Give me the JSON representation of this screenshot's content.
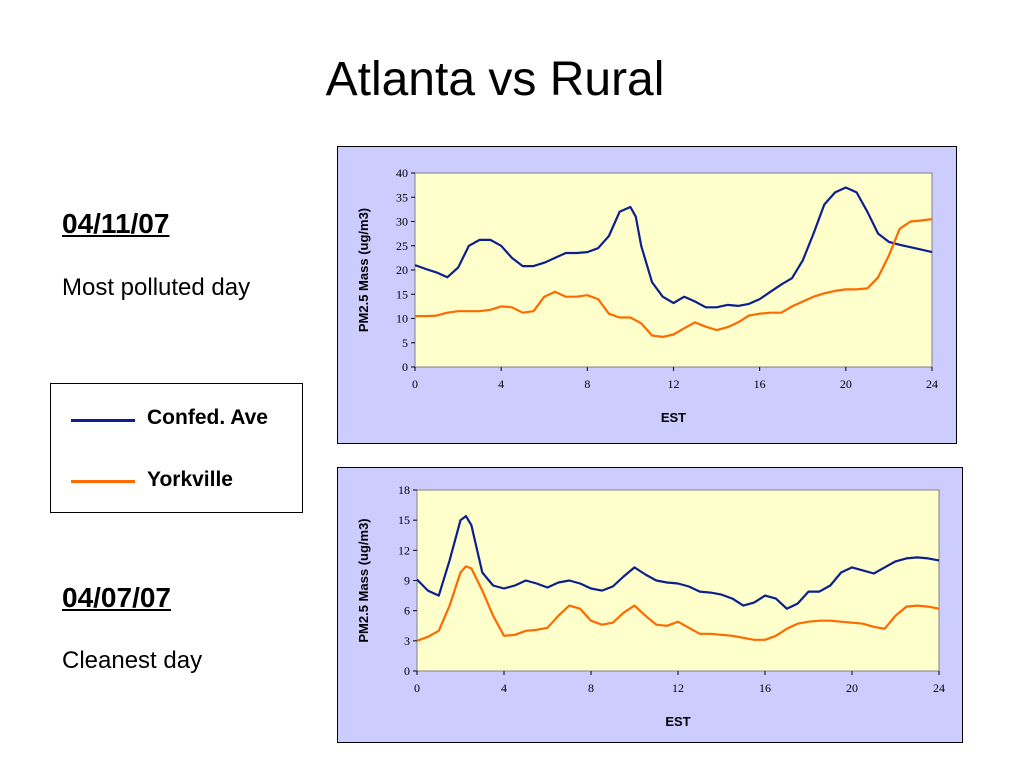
{
  "title": "Atlanta vs Rural",
  "days": [
    {
      "date": "04/11/07",
      "description": "Most polluted day"
    },
    {
      "date": "04/07/07",
      "description": "Cleanest day"
    }
  ],
  "legend": {
    "items": [
      {
        "label": "Confed. Ave",
        "color": "#0b1f8f"
      },
      {
        "label": "Yorkville",
        "color": "#ff6a00"
      }
    ]
  },
  "chart_data": [
    {
      "type": "line",
      "title": "",
      "xlabel": "EST",
      "ylabel": "PM2.5 Mass (ug/m3)",
      "xlim": [
        0,
        24
      ],
      "ylim": [
        0,
        40
      ],
      "xticks": [
        0,
        4,
        8,
        12,
        16,
        20,
        24
      ],
      "yticks": [
        0,
        5,
        10,
        15,
        20,
        25,
        30,
        35,
        40
      ],
      "plot_background": "#ffffcc",
      "series": [
        {
          "name": "Confed. Ave",
          "color": "#0b1f8f",
          "x": [
            0,
            0.5,
            1,
            1.5,
            2,
            2.5,
            3,
            3.5,
            4,
            4.5,
            5,
            5.5,
            6,
            6.5,
            7,
            7.5,
            8,
            8.5,
            9,
            9.5,
            10,
            10.25,
            10.5,
            11,
            11.5,
            12,
            12.5,
            13,
            13.5,
            14,
            14.5,
            15,
            15.5,
            16,
            16.5,
            17,
            17.5,
            18,
            18.5,
            19,
            19.5,
            20,
            20.5,
            21,
            21.5,
            22,
            22.5,
            23,
            23.5,
            24
          ],
          "y": [
            21,
            20.2,
            19.5,
            18.5,
            20.5,
            25,
            26.2,
            26.2,
            25,
            22.5,
            20.8,
            20.8,
            21.5,
            22.5,
            23.5,
            23.5,
            23.7,
            24.5,
            27,
            32,
            33,
            31,
            25,
            17.5,
            14.5,
            13.2,
            14.5,
            13.5,
            12.3,
            12.3,
            12.8,
            12.6,
            13,
            14,
            15.5,
            17,
            18.3,
            22,
            27.5,
            33.5,
            36,
            37,
            36,
            32,
            27.5,
            25.8,
            25.2,
            24.7,
            24.2,
            23.7
          ]
        },
        {
          "name": "Yorkville",
          "color": "#ff6a00",
          "x": [
            0,
            0.5,
            1,
            1.5,
            2,
            2.5,
            3,
            3.5,
            4,
            4.5,
            5,
            5.5,
            6,
            6.5,
            7,
            7.5,
            8,
            8.5,
            9,
            9.5,
            10,
            10.5,
            11,
            11.5,
            12,
            12.5,
            13,
            13.5,
            14,
            14.5,
            15,
            15.5,
            16,
            16.5,
            17,
            17.5,
            18,
            18.5,
            19,
            19.5,
            20,
            20.5,
            21,
            21.5,
            22,
            22.5,
            23,
            23.5,
            24
          ],
          "y": [
            10.5,
            10.5,
            10.6,
            11.2,
            11.5,
            11.5,
            11.5,
            11.8,
            12.5,
            12.3,
            11.2,
            11.5,
            14.5,
            15.5,
            14.5,
            14.5,
            14.8,
            14,
            11,
            10.2,
            10.2,
            9,
            6.5,
            6.2,
            6.7,
            8,
            9.2,
            8.3,
            7.6,
            8.2,
            9.2,
            10.6,
            11,
            11.2,
            11.2,
            12.5,
            13.5,
            14.5,
            15.2,
            15.7,
            16,
            16,
            16.2,
            18.5,
            23,
            28.5,
            30,
            30.2,
            30.5
          ]
        }
      ]
    },
    {
      "type": "line",
      "title": "",
      "xlabel": "EST",
      "ylabel": "PM2.5 Mass (ug/m3)",
      "xlim": [
        0,
        24
      ],
      "ylim": [
        0,
        18
      ],
      "xticks": [
        0,
        4,
        8,
        12,
        16,
        20,
        24
      ],
      "yticks": [
        0,
        3,
        6,
        9,
        12,
        15,
        18
      ],
      "plot_background": "#ffffcc",
      "series": [
        {
          "name": "Confed. Ave",
          "color": "#0b1f8f",
          "x": [
            0,
            0.5,
            1,
            1.5,
            2,
            2.25,
            2.5,
            3,
            3.5,
            4,
            4.5,
            5,
            5.5,
            6,
            6.5,
            7,
            7.5,
            8,
            8.5,
            9,
            9.5,
            10,
            10.5,
            11,
            11.5,
            12,
            12.5,
            13,
            13.5,
            14,
            14.5,
            15,
            15.5,
            16,
            16.5,
            17,
            17.5,
            18,
            18.5,
            19,
            19.5,
            20,
            20.5,
            21,
            21.5,
            22,
            22.5,
            23,
            23.5,
            24
          ],
          "y": [
            9.1,
            8.0,
            7.5,
            11,
            15.0,
            15.4,
            14.5,
            9.8,
            8.5,
            8.2,
            8.5,
            9.0,
            8.7,
            8.3,
            8.8,
            9.0,
            8.7,
            8.2,
            8.0,
            8.4,
            9.4,
            10.3,
            9.6,
            9.0,
            8.8,
            8.7,
            8.4,
            7.9,
            7.8,
            7.6,
            7.2,
            6.5,
            6.8,
            7.5,
            7.2,
            6.2,
            6.7,
            7.9,
            7.9,
            8.5,
            9.8,
            10.3,
            10.0,
            9.7,
            10.3,
            10.9,
            11.2,
            11.3,
            11.2,
            11.0
          ]
        },
        {
          "name": "Yorkville",
          "color": "#ff6a00",
          "x": [
            0,
            0.5,
            1,
            1.5,
            2,
            2.25,
            2.5,
            3,
            3.5,
            4,
            4.5,
            5,
            5.5,
            6,
            6.5,
            7,
            7.5,
            8,
            8.5,
            9,
            9.5,
            10,
            10.5,
            11,
            11.5,
            12,
            12.5,
            13,
            13.5,
            14,
            14.5,
            15,
            15.5,
            16,
            16.5,
            17,
            17.5,
            18,
            18.5,
            19,
            19.5,
            20,
            20.5,
            21,
            21.5,
            22,
            22.5,
            23,
            23.5,
            24
          ],
          "y": [
            3.0,
            3.4,
            4.0,
            6.5,
            9.8,
            10.4,
            10.2,
            8.0,
            5.5,
            3.5,
            3.6,
            4.0,
            4.1,
            4.3,
            5.5,
            6.5,
            6.2,
            5.0,
            4.6,
            4.8,
            5.8,
            6.5,
            5.5,
            4.6,
            4.5,
            4.9,
            4.3,
            3.7,
            3.7,
            3.6,
            3.5,
            3.3,
            3.1,
            3.1,
            3.5,
            4.2,
            4.7,
            4.9,
            5.0,
            5.0,
            4.9,
            4.8,
            4.7,
            4.4,
            4.2,
            5.5,
            6.4,
            6.5,
            6.4,
            6.2
          ]
        }
      ]
    }
  ]
}
